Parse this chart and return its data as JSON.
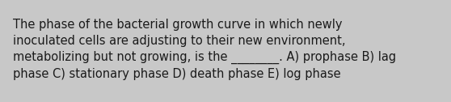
{
  "text": "The phase of the bacterial growth curve in which newly\ninoculated cells are adjusting to their new environment,\nmetabolizing but not growing, is the ________. A) prophase B) lag\nphase C) stationary phase D) death phase E) log phase",
  "background_color": "#c8c8c8",
  "text_color": "#1a1a1a",
  "font_size": 10.5,
  "fig_width": 5.58,
  "fig_height": 1.26,
  "dpi": 100
}
